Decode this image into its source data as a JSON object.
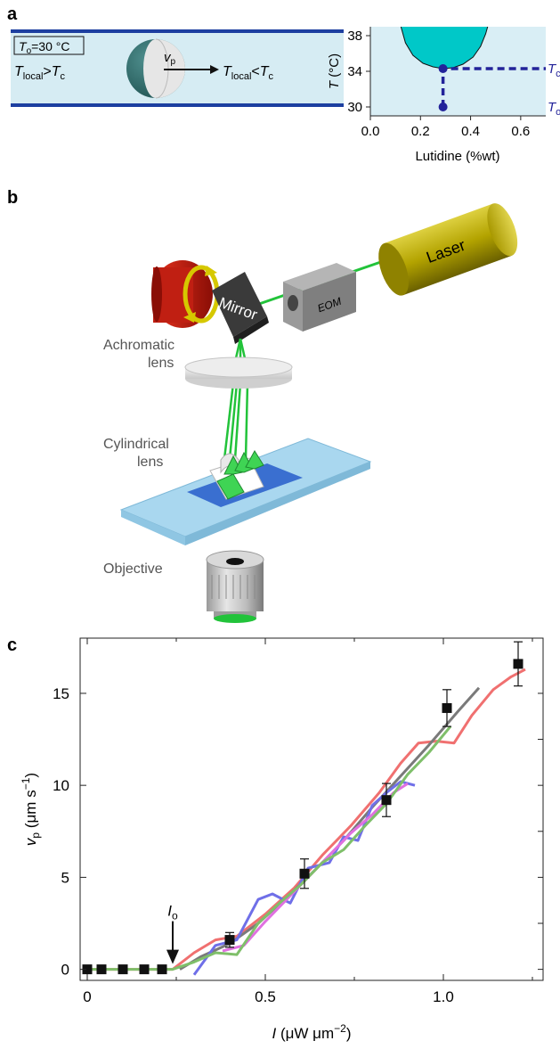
{
  "panel_labels": {
    "a": "a",
    "b": "b",
    "c": "c"
  },
  "panel_a": {
    "channel": {
      "box_label_T": "T",
      "box_label_sub": "o",
      "box_label_rest": "=30 °C",
      "left_T": "T",
      "left_sub": "local",
      "left_rel": ">",
      "left_T2": "T",
      "left_sub2": "c",
      "vp_v": "v",
      "vp_sub": "p",
      "right_T": "T",
      "right_sub": "local",
      "right_rel": "<",
      "right_T2": "T",
      "right_sub2": "c",
      "colors": {
        "channel_fill": "#d6ecf3",
        "wall": "#1d3fa0",
        "particle_dark": "#2a6b6a",
        "particle_light": "#e6e6e6"
      }
    },
    "chart_data": {
      "type": "line",
      "xlabel": "Lutidine (%wt)",
      "ylabel_T": "T",
      "ylabel_unit": " (°C)",
      "xlim": [
        0.0,
        0.7
      ],
      "ylim": [
        29,
        39
      ],
      "xticks": [
        "0.0",
        "0.2",
        "0.4",
        "0.6"
      ],
      "xtick_values": [
        0.0,
        0.2,
        0.4,
        0.6
      ],
      "yticks": [
        "30",
        "34",
        "38"
      ],
      "ytick_values": [
        30,
        34,
        38
      ],
      "phase_boundary": {
        "x": [
          0.12,
          0.14,
          0.17,
          0.21,
          0.25,
          0.29,
          0.33,
          0.37,
          0.41,
          0.44,
          0.46,
          0.47
        ],
        "y": [
          39.2,
          37.2,
          35.8,
          34.9,
          34.5,
          34.3,
          34.4,
          34.8,
          35.6,
          36.8,
          38.2,
          39.2
        ]
      },
      "critical_point": {
        "x": 0.29,
        "y": 34.3
      },
      "start_point": {
        "x": 0.29,
        "y": 30.0
      },
      "right_label_Tc_T": "T",
      "right_label_Tc_sub": "c",
      "right_label_To_T": "T",
      "right_label_To_sub": "o",
      "colors": {
        "bg": "#d9eef5",
        "two_phase": "#00c8c8",
        "marker": "#23239a"
      }
    }
  },
  "panel_b": {
    "laser": "Laser",
    "eom": "EOM",
    "mirror": "Mirror",
    "achromatic_lens": [
      "Achromatic",
      "lens"
    ],
    "cylindrical_lens": [
      "Cylindrical",
      "lens"
    ],
    "objective": "Objective",
    "colors": {
      "laser_body": "#b3a300",
      "beam": "#22c33a",
      "motor": "#cc1a10",
      "ring": "#d6c800",
      "mirror": "#3a3a3a",
      "eom": "#8a8a8a",
      "slide": "#a9d7ef",
      "sample": "#3a6fd0"
    }
  },
  "panel_c": {
    "chart_data": {
      "type": "line",
      "xlabel_I": "I",
      "xlabel_unit_pre": " (μW μm",
      "xlabel_exp": "−2",
      "xlabel_unit_post": ")",
      "ylabel_v": "v",
      "ylabel_sub": "p",
      "ylabel_unit_pre": " (μm s",
      "ylabel_exp": "−1",
      "ylabel_unit_post": ")",
      "xlim": [
        -0.02,
        1.28
      ],
      "ylim": [
        -0.6,
        18.0
      ],
      "xticks": [
        "0",
        "0.5",
        "1.0"
      ],
      "xtick_values": [
        0,
        0.5,
        1.0
      ],
      "yticks": [
        "0",
        "5",
        "10",
        "15"
      ],
      "ytick_values": [
        0,
        5,
        10,
        15
      ],
      "annotation_I": "I",
      "annotation_sub": "o",
      "annotation_x": 0.24,
      "points": {
        "x": [
          0.0,
          0.04,
          0.1,
          0.16,
          0.21,
          0.4,
          0.61,
          0.84,
          1.01,
          1.21
        ],
        "y": [
          0.0,
          0.0,
          0.0,
          0.0,
          0.0,
          1.6,
          5.2,
          9.2,
          14.2,
          16.6
        ],
        "err": [
          0,
          0,
          0,
          0,
          0,
          0.4,
          0.8,
          0.9,
          1.0,
          1.2
        ]
      },
      "series": [
        {
          "color": "#f07070",
          "x": [
            0.0,
            0.24,
            0.3,
            0.36,
            0.42,
            0.5,
            0.58,
            0.66,
            0.74,
            0.82,
            0.88,
            0.93,
            0.98,
            1.03,
            1.08,
            1.14,
            1.19,
            1.23
          ],
          "y": [
            0.0,
            0.0,
            0.9,
            1.6,
            1.8,
            3.0,
            4.4,
            6.2,
            7.8,
            9.6,
            11.2,
            12.3,
            12.4,
            12.3,
            13.8,
            15.2,
            15.9,
            16.3
          ]
        },
        {
          "color": "#7a7a7a",
          "x": [
            0.26,
            0.32,
            0.4,
            0.48,
            0.56,
            0.64,
            0.72,
            0.8,
            0.88,
            0.96,
            1.04,
            1.1
          ],
          "y": [
            0.0,
            0.7,
            1.4,
            2.5,
            3.9,
            5.4,
            7.0,
            8.8,
            10.5,
            12.2,
            14.0,
            15.3
          ]
        },
        {
          "color": "#6f6fe8",
          "x": [
            0.3,
            0.36,
            0.42,
            0.48,
            0.52,
            0.57,
            0.62,
            0.68,
            0.72,
            0.76,
            0.8,
            0.84,
            0.88,
            0.92
          ],
          "y": [
            -0.3,
            1.3,
            1.6,
            3.8,
            4.1,
            3.6,
            5.5,
            5.8,
            7.2,
            7.0,
            8.9,
            9.6,
            10.2,
            10.0
          ]
        },
        {
          "color": "#e070e0",
          "x": [
            0.38,
            0.44,
            0.5,
            0.56,
            0.62,
            0.68,
            0.74,
            0.8,
            0.86,
            0.9
          ],
          "y": [
            1.0,
            1.3,
            2.6,
            3.8,
            5.0,
            6.2,
            7.4,
            8.4,
            9.6,
            10.1
          ]
        },
        {
          "color": "#7fbf6a",
          "x": [
            0.0,
            0.24,
            0.3,
            0.36,
            0.42,
            0.48,
            0.54,
            0.6,
            0.66,
            0.72,
            0.78,
            0.84,
            0.9,
            0.96,
            1.02
          ],
          "y": [
            0.0,
            0.0,
            0.4,
            0.9,
            0.8,
            2.5,
            3.6,
            4.6,
            5.8,
            6.5,
            7.8,
            9.0,
            10.6,
            11.8,
            13.2
          ]
        }
      ]
    }
  }
}
